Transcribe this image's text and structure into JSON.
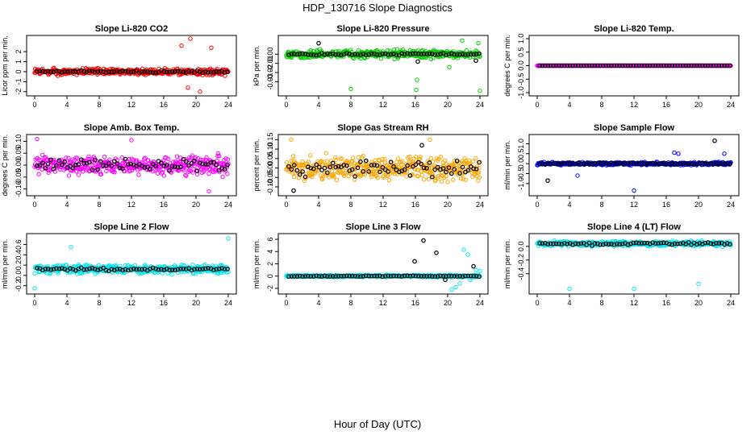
{
  "figure": {
    "title": "HDP_130716  Slope Diagnostics",
    "xlabel": "Hour of Day (UTC)"
  },
  "colors": {
    "red": "#ff0000",
    "green": "#00cc00",
    "magenta": "#ff00ff",
    "orange": "#ffa500",
    "blue": "#0000ff",
    "cyan": "#00e5ee",
    "black": "#000000"
  },
  "chart_data": [
    {
      "type": "scatter",
      "title": "Slope Li-820 CO2",
      "ylabel": "Licor ppm per min.",
      "xlim": [
        0,
        24
      ],
      "xticks": [
        0,
        4,
        8,
        12,
        16,
        20,
        24
      ],
      "ylim": [
        -2.1,
        3.3
      ],
      "yticks": [
        -2,
        -1,
        0,
        1,
        2
      ],
      "yticklabels": [
        "-2",
        "-1",
        "0",
        "1",
        "2"
      ],
      "color": "red",
      "center": 0,
      "spread": 0.45,
      "black_spread": 0.2,
      "outliers": [
        [
          19.3,
          3.3
        ],
        [
          18.2,
          2.6
        ],
        [
          21.9,
          2.4
        ],
        [
          20.5,
          -2.0
        ],
        [
          19.0,
          -1.6
        ]
      ],
      "black_outliers": []
    },
    {
      "type": "scatter",
      "title": "Slope Li-820 Pressure",
      "ylabel": "kPa per min.",
      "xlim": [
        0,
        24
      ],
      "xticks": [
        0,
        4,
        8,
        12,
        16,
        20,
        24
      ],
      "ylim": [
        -0.042,
        0.017
      ],
      "yticks": [
        -0.03,
        -0.02,
        -0.01,
        0.0
      ],
      "yticklabels": [
        "-0.03",
        "-0.02",
        "-0.01",
        "0.00"
      ],
      "color": "green",
      "center": 0.0,
      "spread": 0.006,
      "black_spread": 0.0015,
      "outliers": [
        [
          8.0,
          -0.038
        ],
        [
          16.1,
          -0.039
        ],
        [
          16.2,
          -0.028
        ],
        [
          24.0,
          -0.04
        ],
        [
          20.2,
          -0.014
        ],
        [
          21.8,
          0.015
        ],
        [
          23.8,
          0.012
        ]
      ],
      "black_outliers": [
        [
          16.3,
          -0.008
        ],
        [
          4.0,
          0.012
        ],
        [
          23.5,
          -0.007
        ]
      ]
    },
    {
      "type": "scatter",
      "title": "Slope Li-820 Temp.",
      "ylabel": "degrees C per min.",
      "xlim": [
        0,
        24
      ],
      "xticks": [
        0,
        4,
        8,
        12,
        16,
        20,
        24
      ],
      "ylim": [
        -1.0,
        1.0
      ],
      "yticks": [
        -1.0,
        -0.5,
        0.0,
        0.5,
        1.0
      ],
      "yticklabels": [
        "-1.0",
        "-0.5",
        "0.0",
        "0.5",
        "1.0"
      ],
      "color": "magenta",
      "center": 0,
      "spread": 0,
      "black_spread": 0,
      "outliers": [],
      "black_outliers": []
    },
    {
      "type": "scatter",
      "title": "Slope Amb. Box Temp.",
      "ylabel": "degrees C per min.",
      "xlim": [
        0,
        24
      ],
      "xticks": [
        0,
        4,
        8,
        12,
        16,
        20,
        24
      ],
      "ylim": [
        -0.115,
        0.115
      ],
      "yticks": [
        -0.1,
        -0.05,
        0.0,
        0.05,
        0.1
      ],
      "yticklabels": [
        "-0.10",
        "-0.05",
        "0.00",
        "0.05",
        "0.10"
      ],
      "color": "magenta",
      "center": 0.0,
      "spread": 0.055,
      "black_spread": 0.035,
      "outliers": [
        [
          0.3,
          0.11
        ],
        [
          21.6,
          -0.11
        ],
        [
          12.0,
          0.105
        ]
      ],
      "black_outliers": []
    },
    {
      "type": "scatter",
      "title": "Slope Gas Stream RH",
      "ylabel": "percent per min.",
      "xlim": [
        0,
        24
      ],
      "xticks": [
        0,
        4,
        8,
        12,
        16,
        20,
        24
      ],
      "ylim": [
        -0.13,
        0.16
      ],
      "yticks": [
        -0.1,
        -0.05,
        0.0,
        0.05,
        0.1,
        0.15
      ],
      "yticklabels": [
        "-0.10",
        "-0.05",
        "0.00",
        "0.05",
        "0.10",
        "0.15"
      ],
      "color": "orange",
      "center": 0.0,
      "spread": 0.085,
      "black_spread": 0.06,
      "outliers": [
        [
          17.8,
          0.15
        ],
        [
          0.6,
          0.15
        ]
      ],
      "black_outliers": [
        [
          16.8,
          0.12
        ],
        [
          0.9,
          -0.12
        ]
      ]
    },
    {
      "type": "scatter",
      "title": "Slope Sample Flow",
      "ylabel": "ml/min per min.",
      "xlim": [
        0,
        24
      ],
      "xticks": [
        0,
        4,
        8,
        12,
        16,
        20,
        24
      ],
      "ylim": [
        -1.45,
        1.3
      ],
      "yticks": [
        -1.0,
        -0.5,
        0.0,
        0.5,
        1.0
      ],
      "yticklabels": [
        "-1.0",
        "-0.5",
        "0.0",
        "0.5",
        "1.0"
      ],
      "color": "blue",
      "center": 0.0,
      "spread": 0.1,
      "black_spread": 0.05,
      "outliers": [
        [
          12.0,
          -1.35
        ],
        [
          17.0,
          0.55
        ],
        [
          17.5,
          0.5
        ],
        [
          5.0,
          -0.6
        ],
        [
          23.2,
          0.5
        ]
      ],
      "black_outliers": [
        [
          22.0,
          1.15
        ],
        [
          1.3,
          -0.85
        ]
      ]
    },
    {
      "type": "scatter",
      "title": "Slope Line 2 Flow",
      "ylabel": "ml/min per min.",
      "xlim": [
        0,
        24
      ],
      "xticks": [
        0,
        4,
        8,
        12,
        16,
        20,
        24
      ],
      "ylim": [
        -0.3,
        0.75
      ],
      "yticks": [
        -0.2,
        0.0,
        0.2,
        0.4,
        0.6
      ],
      "yticklabels": [
        "-0.2",
        "0.0",
        "0.2",
        "0.4",
        "0.6"
      ],
      "color": "cyan",
      "center": 0.12,
      "spread": 0.12,
      "black_spread": 0.04,
      "outliers": [
        [
          24.0,
          0.72
        ],
        [
          4.5,
          0.55
        ],
        [
          0.0,
          -0.25
        ]
      ],
      "black_outliers": []
    },
    {
      "type": "scatter",
      "title": "Slope Line 3 Flow",
      "ylabel": "ml/min per min.",
      "xlim": [
        0,
        24
      ],
      "xticks": [
        0,
        4,
        8,
        12,
        16,
        20,
        24
      ],
      "ylim": [
        -2.4,
        6.4
      ],
      "yticks": [
        -2,
        0,
        2,
        4,
        6
      ],
      "yticklabels": [
        "-2",
        "0",
        "2",
        "4",
        "6"
      ],
      "color": "cyan",
      "center": 0.0,
      "spread": 0.25,
      "black_spread": 0.1,
      "outliers": [
        [
          22.0,
          4.3
        ],
        [
          22.5,
          3.5
        ],
        [
          21.5,
          -1.2
        ],
        [
          21.0,
          -1.8
        ],
        [
          20.5,
          -2.2
        ],
        [
          23.5,
          1.0
        ],
        [
          24.0,
          0.8
        ],
        [
          22.8,
          -0.6
        ]
      ],
      "black_outliers": [
        [
          17.0,
          5.8
        ],
        [
          18.6,
          3.8
        ],
        [
          15.9,
          2.4
        ],
        [
          23.2,
          1.6
        ],
        [
          19.7,
          -0.6
        ]
      ]
    },
    {
      "type": "scatter",
      "title": "Slope Line 4 (LT) Flow",
      "ylabel": "ml/min per min.",
      "xlim": [
        0,
        24
      ],
      "xticks": [
        0,
        4,
        8,
        12,
        16,
        20,
        24
      ],
      "ylim": [
        -0.65,
        0.14
      ],
      "yticks": [
        -0.4,
        -0.2,
        0.0
      ],
      "yticklabels": [
        "-0.4",
        "-0.2",
        "0.0"
      ],
      "color": "cyan",
      "center": 0.04,
      "spread": 0.05,
      "black_spread": 0.03,
      "outliers": [
        [
          4.0,
          -0.62
        ],
        [
          12.0,
          -0.62
        ],
        [
          20.0,
          -0.55
        ]
      ],
      "black_outliers": []
    }
  ]
}
